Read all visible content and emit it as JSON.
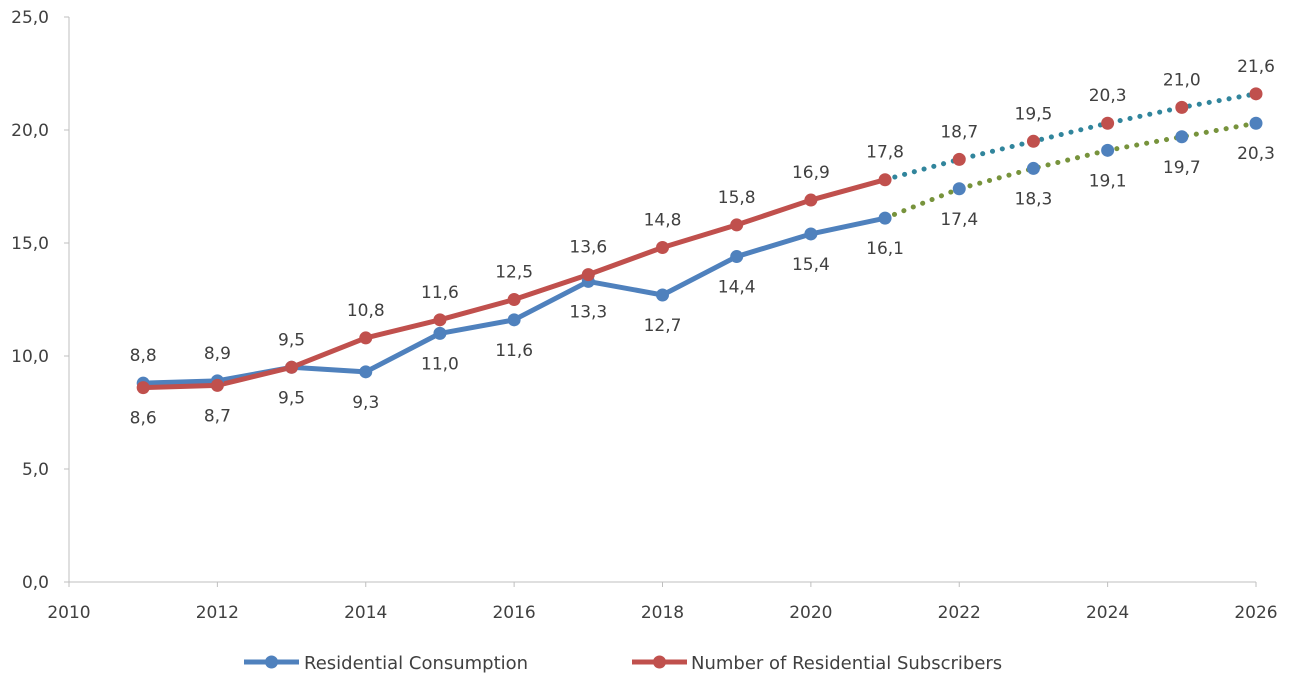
{
  "chart_data": {
    "type": "line",
    "title": "",
    "xlabel": "",
    "ylabel": "",
    "xlim": [
      2010,
      2026
    ],
    "ylim": [
      0,
      25
    ],
    "x_ticks": [
      "2010",
      "2012",
      "2014",
      "2016",
      "2018",
      "2020",
      "2022",
      "2024",
      "2026"
    ],
    "y_ticks": [
      "0,0",
      "5,0",
      "10,0",
      "15,0",
      "20,0",
      "25,0"
    ],
    "grid": false,
    "legend_position": "bottom",
    "x": [
      2011,
      2012,
      2013,
      2014,
      2015,
      2016,
      2017,
      2018,
      2019,
      2020,
      2021,
      2022,
      2023,
      2024,
      2025,
      2026
    ],
    "series": [
      {
        "name": "Residential Consumption",
        "color": "#4f81bd",
        "forecast_color": "#77933c",
        "forecast_from": 2021,
        "values": [
          8.8,
          8.9,
          9.5,
          9.3,
          11.0,
          11.6,
          13.3,
          12.7,
          14.4,
          15.4,
          16.1,
          17.4,
          18.3,
          19.1,
          19.7,
          20.3
        ],
        "labels": [
          "8,8",
          "8,9",
          "9,5",
          "9,3",
          "11,0",
          "11,6",
          "13,3",
          "12,7",
          "14,4",
          "15,4",
          "16,1",
          "17,4",
          "18,3",
          "19,1",
          "19,7",
          "20,3"
        ]
      },
      {
        "name": "Number of Residential Subscribers",
        "color": "#c0504d",
        "forecast_color": "#31859c",
        "forecast_from": 2021,
        "values": [
          8.6,
          8.7,
          9.5,
          10.8,
          11.6,
          12.5,
          13.6,
          14.8,
          15.8,
          16.9,
          17.8,
          18.7,
          19.5,
          20.3,
          21.0,
          21.6
        ],
        "labels": [
          "8,6",
          "8,7",
          "9,5",
          "10,8",
          "11,6",
          "12,5",
          "13,6",
          "14,8",
          "15,8",
          "16,9",
          "17,8",
          "18,7",
          "19,5",
          "20,3",
          "21,0",
          "21,6"
        ]
      }
    ]
  }
}
